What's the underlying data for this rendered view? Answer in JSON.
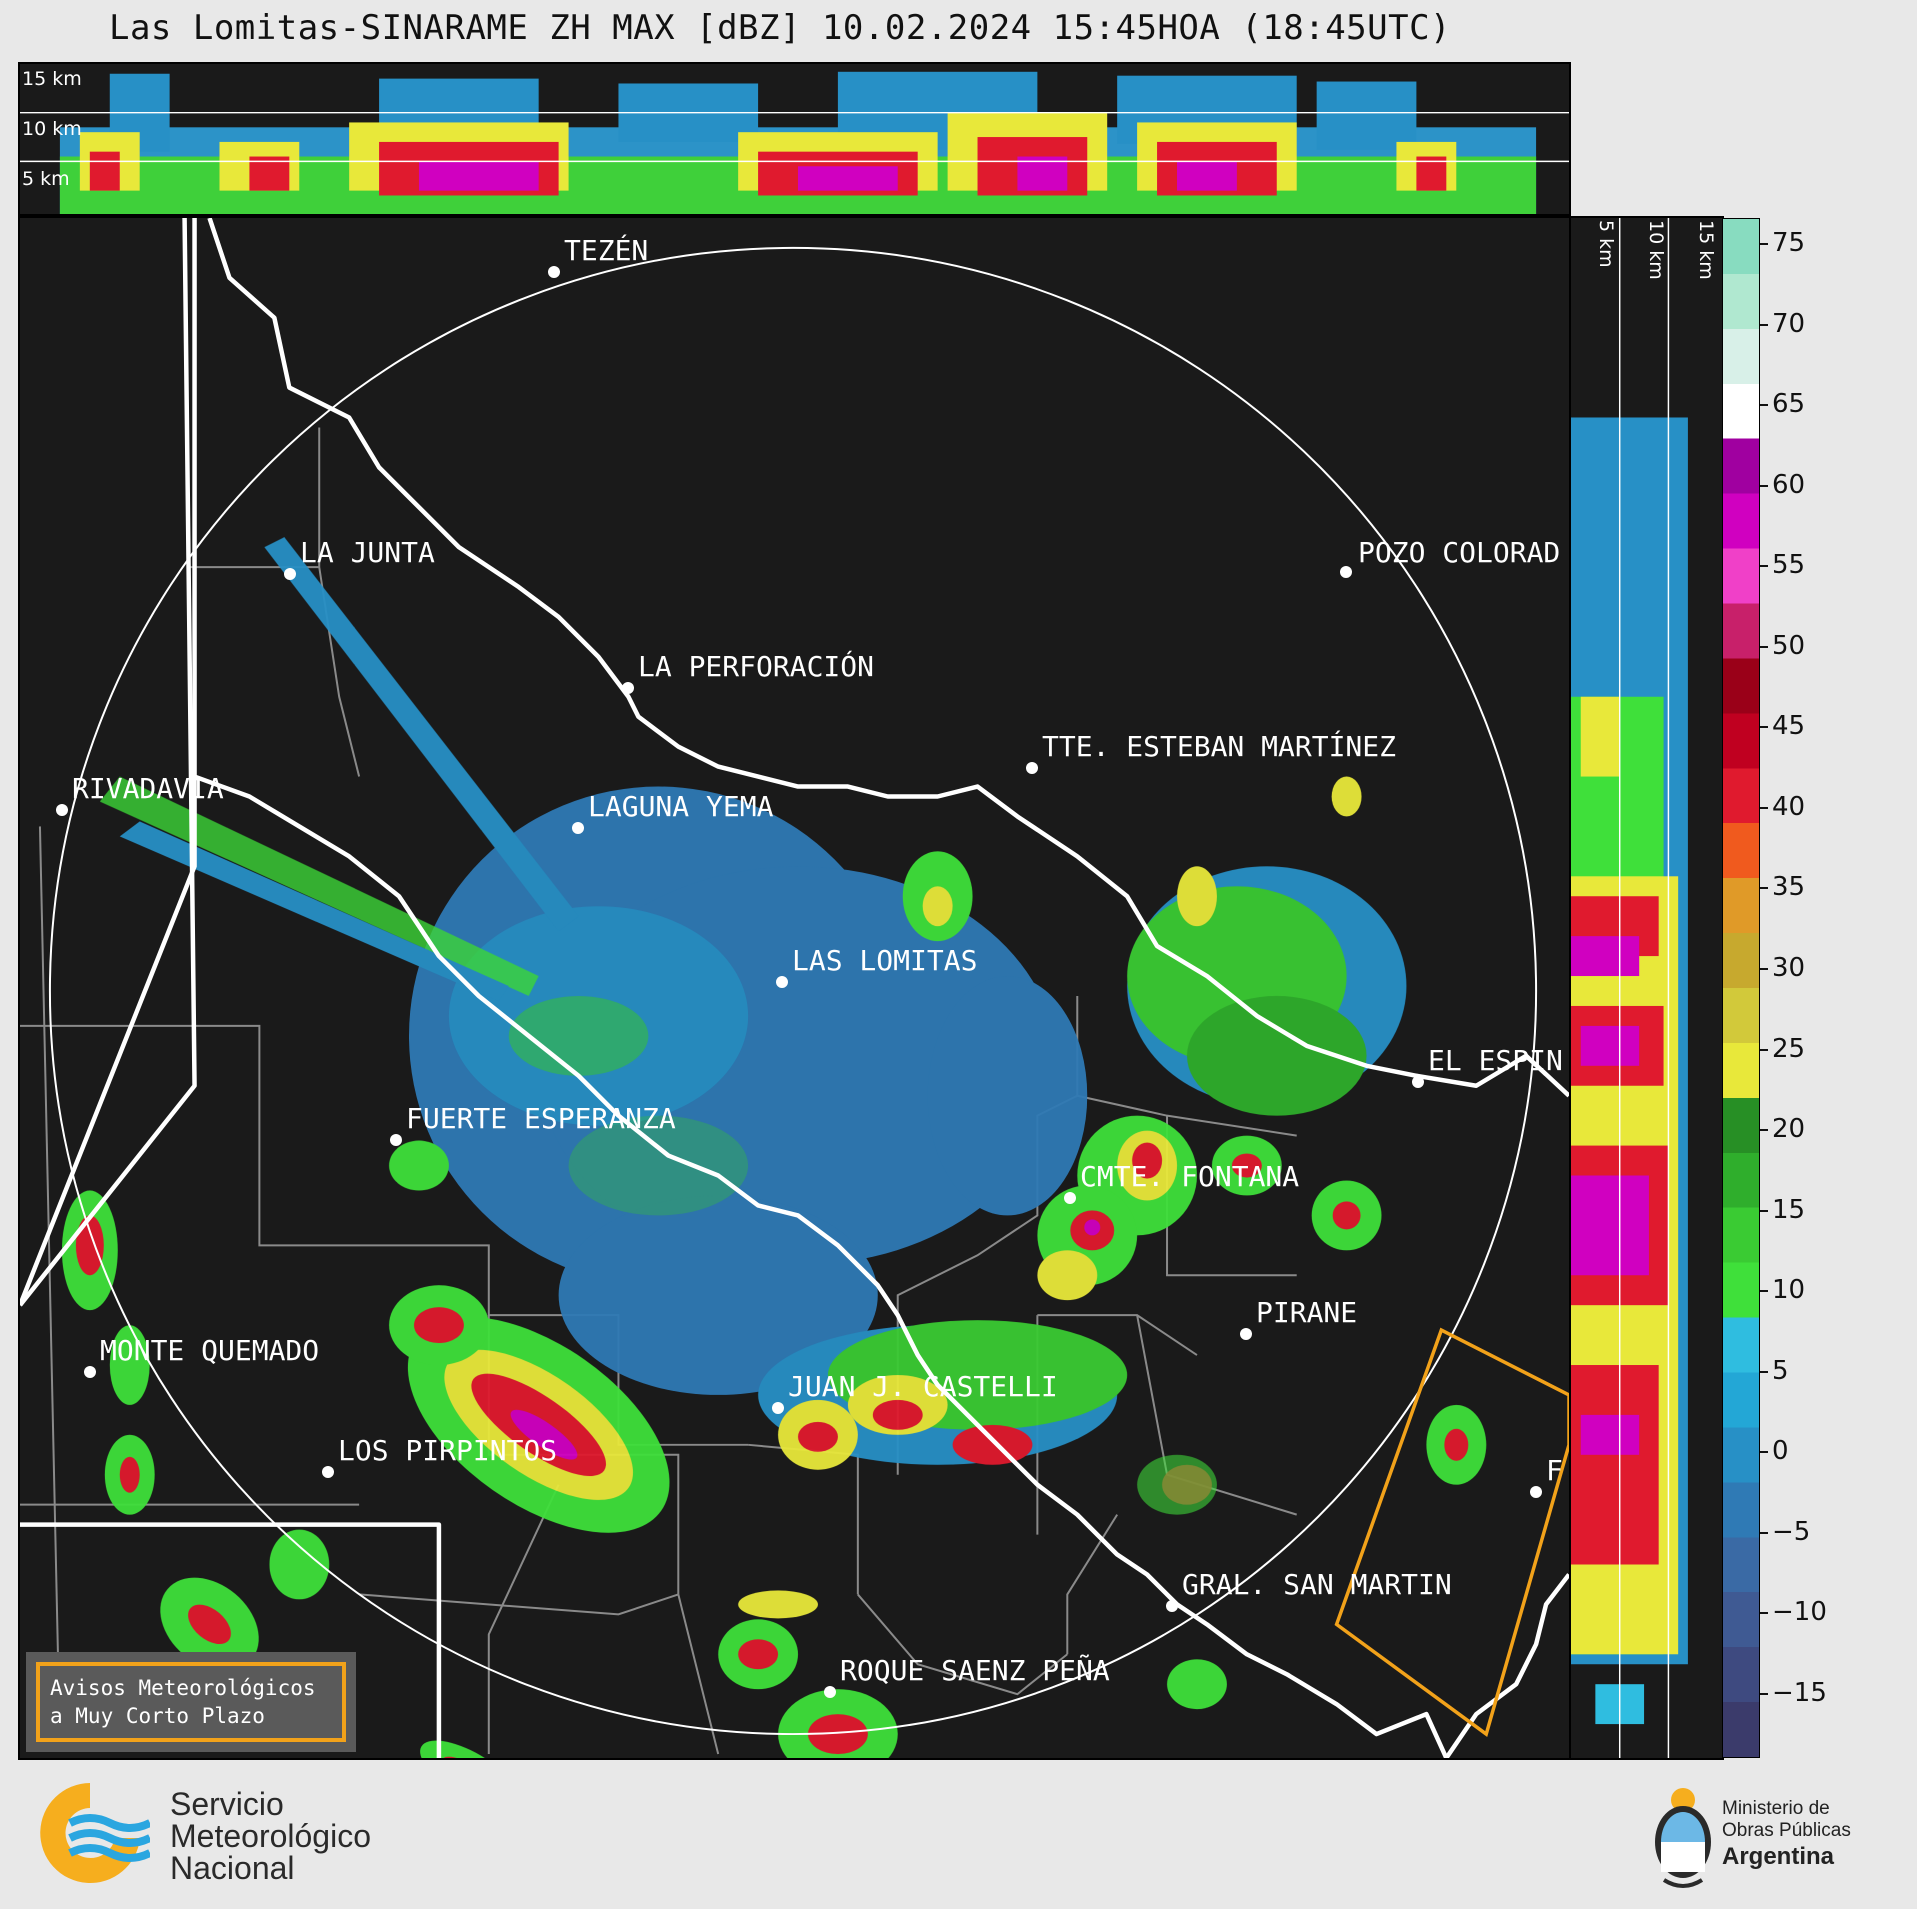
{
  "title": "Las Lomitas-SINARAME ZH MAX [dBZ] 10.02.2024 15:45HOA (18:45UTC)",
  "top_profile": {
    "altitude_labels": [
      "15 km",
      "10 km",
      "5 km"
    ]
  },
  "side_profile": {
    "altitude_labels": [
      "5 km",
      "10 km",
      "15 km"
    ]
  },
  "colorbar": {
    "unit": "dBZ",
    "ticks": [
      "75",
      "70",
      "65",
      "60",
      "55",
      "50",
      "45",
      "40",
      "35",
      "30",
      "25",
      "20",
      "15",
      "10",
      "5",
      "0",
      "−5",
      "−10",
      "−15"
    ],
    "colors_bottom_to_top": [
      "#3b3b6b",
      "#3e4a80",
      "#3f5a93",
      "#3a6aa5",
      "#2f7ab5",
      "#2790c6",
      "#23a7d6",
      "#2fbde0",
      "#3fe03a",
      "#3acb33",
      "#2fae2c",
      "#278f25",
      "#e8e83a",
      "#d2c93a",
      "#c7a92e",
      "#e09a28",
      "#f05a1e",
      "#e01a2e",
      "#c00020",
      "#9a0018",
      "#c8206a",
      "#f040c8",
      "#d000c0",
      "#a000a0",
      "#ffffff",
      "#d8f0e8",
      "#b0e8d0",
      "#88dcc0"
    ]
  },
  "map": {
    "cities": [
      {
        "name": "TEZÉN"
      },
      {
        "name": "LA JUNTA"
      },
      {
        "name": "POZO COLORAD"
      },
      {
        "name": "LA PERFORACIÓN"
      },
      {
        "name": "TTE. ESTEBAN MARTÍNEZ"
      },
      {
        "name": "RIVADAVIA"
      },
      {
        "name": "LAGUNA YEMA"
      },
      {
        "name": "LAS LOMITAS"
      },
      {
        "name": "EL ESPIN"
      },
      {
        "name": "FUERTE ESPERANZA"
      },
      {
        "name": "CMTE. FONTANA"
      },
      {
        "name": "PIRANE"
      },
      {
        "name": "MONTE QUEMADO"
      },
      {
        "name": "JUAN J. CASTELLI"
      },
      {
        "name": "LOS PIRPINTOS"
      },
      {
        "name": "F"
      },
      {
        "name": "GRAL. SAN MARTIN"
      },
      {
        "name": "ROQUE SAENZ PEÑA"
      }
    ],
    "range_ring_color": "#ffffff",
    "border_color": "#ffffff",
    "warning_polygon_color": "#f2a21a"
  },
  "alert_box": {
    "line1": "Avisos Meteorológicos",
    "line2": "a Muy Corto Plazo"
  },
  "footer": {
    "smn_line1": "Servicio",
    "smn_line2": "Meteorológico",
    "smn_line3": "Nacional",
    "mop_line1": "Ministerio de",
    "mop_line2": "Obras Públicas",
    "mop_line3": "Argentina"
  }
}
